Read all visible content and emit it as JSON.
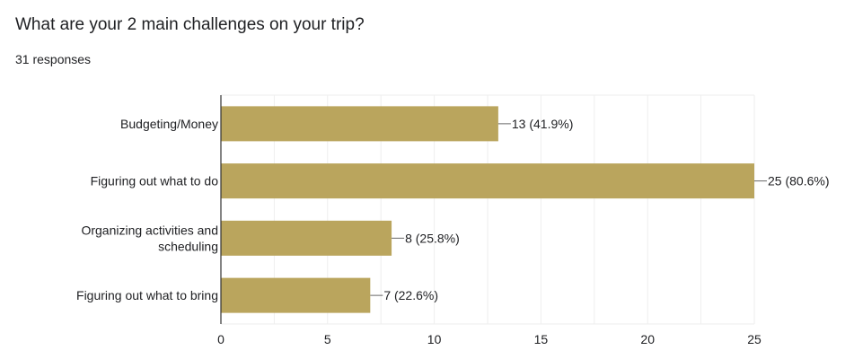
{
  "question": {
    "title": "What are your 2 main challenges on your trip?",
    "responses": "31 responses"
  },
  "colors": {
    "bar": "#baa55d",
    "grid": "#eeeeee",
    "axis": "#333333",
    "text": "#202124"
  },
  "chart_data": {
    "type": "bar",
    "orientation": "horizontal",
    "categories": [
      [
        "Budgeting/Money"
      ],
      [
        "Figuring out what to do"
      ],
      [
        "Organizing activities and",
        "scheduling"
      ],
      [
        "Figuring out what to bring"
      ]
    ],
    "values": [
      13,
      25,
      8,
      7
    ],
    "data_labels": [
      "13 (41.9%)",
      "25 (80.6%)",
      "8 (25.8%)",
      "7 (22.6%)"
    ],
    "xticks": [
      0,
      5,
      10,
      15,
      20,
      25
    ],
    "xlim": [
      0,
      25
    ],
    "grid": true
  }
}
